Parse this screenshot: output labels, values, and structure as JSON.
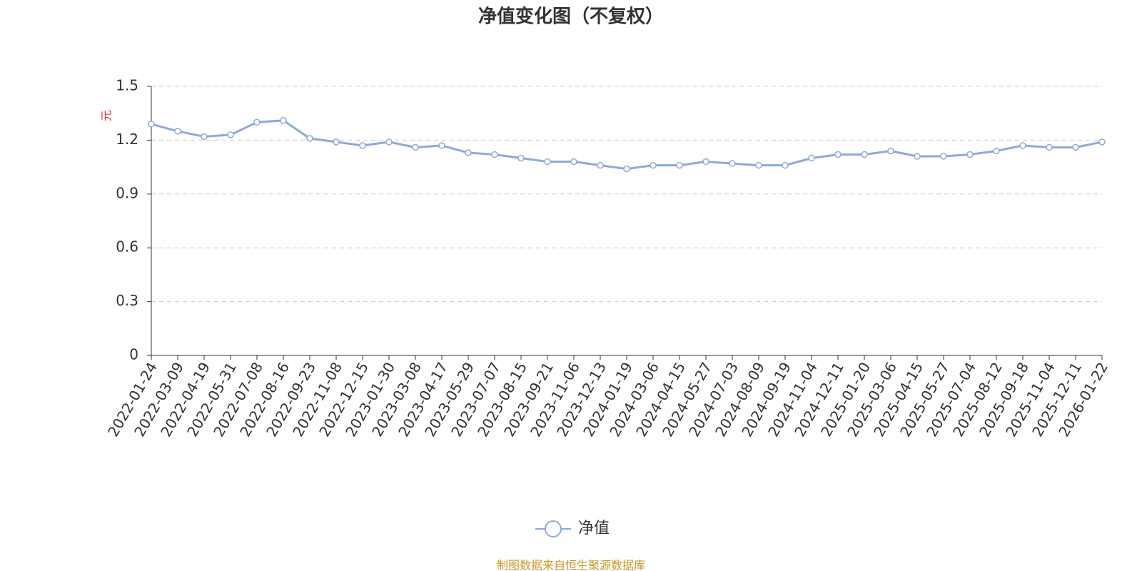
{
  "chart_data": {
    "type": "line",
    "title": "净值变化图（不复权）",
    "y_label": "元",
    "categories": [
      "2022-01-24",
      "2022-03-09",
      "2022-04-19",
      "2022-05-31",
      "2022-07-08",
      "2022-08-16",
      "2022-09-23",
      "2022-11-08",
      "2022-12-15",
      "2023-01-30",
      "2023-03-08",
      "2023-04-17",
      "2023-05-29",
      "2023-07-07",
      "2023-08-15",
      "2023-09-21",
      "2023-11-06",
      "2023-12-13",
      "2024-01-19",
      "2024-03-06",
      "2024-04-15",
      "2024-05-27",
      "2024-07-03",
      "2024-08-09",
      "2024-09-19",
      "2024-11-04",
      "2024-12-11",
      "2025-01-20",
      "2025-03-06",
      "2025-04-15",
      "2025-05-27",
      "2025-07-04",
      "2025-08-12",
      "2025-09-18",
      "2025-11-04",
      "2025-12-11",
      "2026-01-22"
    ],
    "series": [
      {
        "name": "净值",
        "color": "#8eaadb",
        "values": [
          1.29,
          1.25,
          1.22,
          1.23,
          1.3,
          1.31,
          1.21,
          1.19,
          1.17,
          1.19,
          1.16,
          1.17,
          1.13,
          1.12,
          1.1,
          1.08,
          1.08,
          1.06,
          1.04,
          1.06,
          1.06,
          1.08,
          1.07,
          1.06,
          1.06,
          1.1,
          1.12,
          1.12,
          1.14,
          1.11,
          1.11,
          1.12,
          1.14,
          1.17,
          1.16,
          1.16,
          1.19
        ]
      }
    ],
    "ylim": [
      0,
      1.5
    ],
    "yticks": [
      0,
      0.3,
      0.6,
      0.9,
      1.2,
      1.5
    ],
    "grid": true,
    "legend": "bottom",
    "source": "制图数据来自恒生聚源数据库"
  }
}
